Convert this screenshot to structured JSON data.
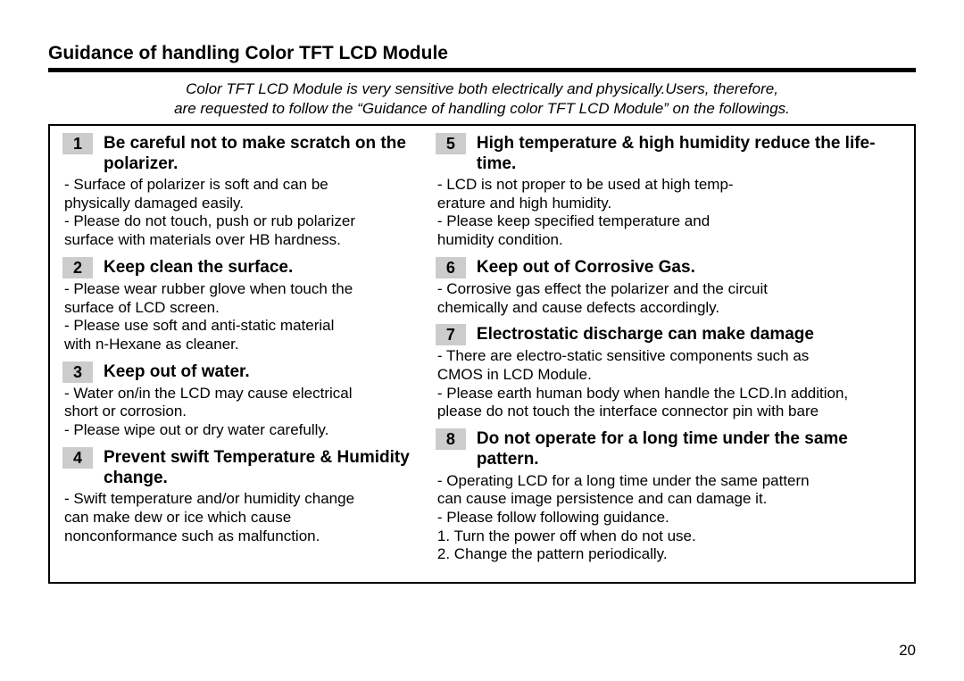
{
  "title": "Guidance of handling Color TFT LCD Module",
  "intro_line1": "Color TFT LCD Module is very sensitive both electrically and physically.Users, therefore,",
  "intro_line2": "are requested to follow the “Guidance of handling color TFT LCD Module” on the followings.",
  "page_number": "20",
  "badge_bg": "#cccccc",
  "left": [
    {
      "num": "1",
      "title": "Be careful not to make scratch on the polarizer.",
      "body": "- Surface of polarizer is soft and can be\n  physically damaged easily.\n- Please do not touch, push or rub polarizer\n  surface with materials over HB hardness."
    },
    {
      "num": "2",
      "title": "Keep clean the surface.",
      "body": "- Please wear rubber glove when touch the\n  surface of LCD screen.\n- Please use soft and anti-static material\n  with n-Hexane as cleaner."
    },
    {
      "num": "3",
      "title": "Keep out of water.",
      "body": "- Water on/in the LCD may cause electrical\n  short or corrosion.\n- Please wipe out or dry water carefully."
    },
    {
      "num": "4",
      "title": "Prevent swift Temperature & Humidity change.",
      "body": "- Swift temperature and/or humidity change\n  can make dew or ice which cause\n  nonconformance such as malfunction."
    }
  ],
  "right": [
    {
      "num": "5",
      "title": "High temperature & high humidity reduce the life-time.",
      "body": "- LCD is not proper to be used at high temp-\n  erature and high humidity.\n- Please keep specified temperature and\n  humidity condition."
    },
    {
      "num": "6",
      "title": "Keep out of Corrosive Gas.",
      "body": "- Corrosive gas effect the polarizer and the circuit\n   chemically and cause defects accordingly."
    },
    {
      "num": "7",
      "title": "Electrostatic discharge can make damage",
      "body": "- There are electro-static sensitive components such as\n  CMOS in LCD Module.\n- Please earth human body when handle the LCD.In addition,\n  please do not touch the interface connector pin with  bare"
    },
    {
      "num": "8",
      "title": "Do not operate for a long time under the same pattern.",
      "body": "- Operating LCD for a long time under the same pattern\n  can cause image persistence  and can damage it.\n- Please follow following guidance.\n  1. Turn the power off when do not use.\n  2. Change the pattern periodically."
    }
  ]
}
